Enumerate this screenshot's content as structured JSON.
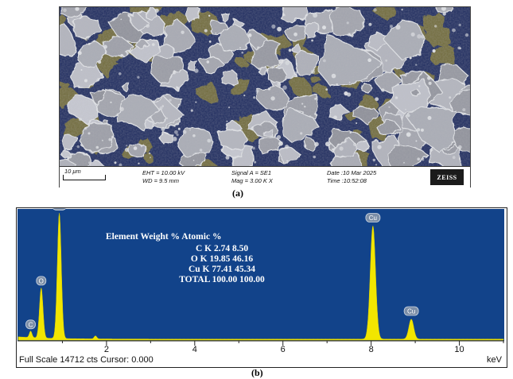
{
  "panel_a": {
    "label": "(a)",
    "databar": {
      "scale": "10 μm",
      "eht": "EHT = 10.00 kV",
      "wd": "WD = 9.5 mm",
      "signal": "Signal A = SE1",
      "mag": "Mag =    3.00 K X",
      "date": "Date :10 Mar 2025",
      "time": "Time :10:52:08",
      "logo": "ZEISS"
    },
    "colors": {
      "background": "#1d2a5e",
      "particles": "#a9acb6",
      "highlight": "#e4e6ea",
      "debris": "#6f6a3a"
    }
  },
  "panel_b": {
    "label": "(b)",
    "status_left": "Full Scale 14712 cts Cursor: 0.000",
    "status_right": "keV",
    "colors": {
      "plot_background": "#12438a",
      "spectrum": "#f2e600"
    }
  },
  "chart_data": {
    "type": "area",
    "xlabel": "keV",
    "ylabel": "",
    "xlim": [
      0,
      11
    ],
    "ylim": [
      0,
      14712
    ],
    "x_ticks": [
      2,
      4,
      6,
      8,
      10
    ],
    "full_scale_cts": 14712,
    "peaks": [
      {
        "label": "C",
        "x": 0.28,
        "y": 750
      },
      {
        "label": "O",
        "x": 0.52,
        "y": 5800
      },
      {
        "label": "Cu",
        "x": 0.93,
        "y": 14500
      },
      {
        "label": "Cu",
        "x": 8.04,
        "y": 13100
      },
      {
        "label": "Cu",
        "x": 8.91,
        "y": 2300
      }
    ],
    "composition_table": {
      "columns": [
        "Element",
        "Weight %",
        "Atomic %"
      ],
      "rows": [
        {
          "element": "C K",
          "weight": "2.74",
          "atomic": "8.50"
        },
        {
          "element": "O K",
          "weight": "19.85",
          "atomic": "46.16"
        },
        {
          "element": "Cu K",
          "weight": "77.41",
          "atomic": "45.34"
        },
        {
          "element": "TOTAL",
          "weight": "100.00",
          "atomic": "100.00"
        }
      ]
    }
  }
}
